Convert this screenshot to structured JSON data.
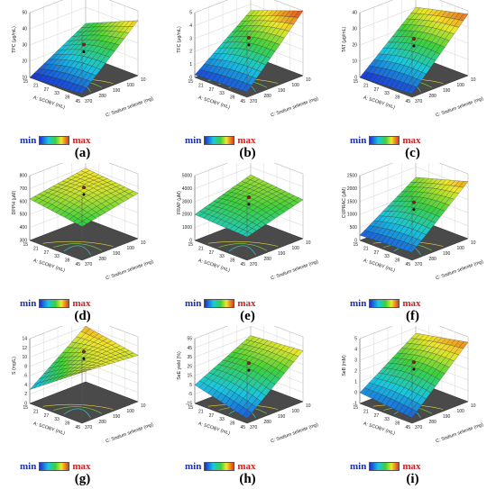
{
  "legend": {
    "min_label": "min",
    "max_label": "max"
  },
  "chart_data": [
    {
      "id": "a",
      "panel_label": "(a)",
      "type": "surface",
      "zlabel": "TPC (μg/mL)",
      "zticks": [
        "10",
        "20",
        "30",
        "40",
        "50"
      ],
      "xlabel": "C: Sodium selenite (mg)",
      "xticks": [
        "10",
        "100",
        "190",
        "280",
        "370"
      ],
      "ylabel": "A: SCOBY (mL)",
      "yticks": [
        "15",
        "21",
        "27",
        "33",
        "39",
        "45"
      ],
      "z_corners": {
        "x0y0": 12,
        "x1y0": 44,
        "x0y1": 10,
        "x1y1": 30
      }
    },
    {
      "id": "b",
      "panel_label": "(b)",
      "type": "surface",
      "zlabel": "TFC (μg/mL)",
      "zticks": [
        "0",
        "1",
        "2",
        "3",
        "4",
        "5"
      ],
      "xlabel": "C: Sodium selenite (mg)",
      "xticks": [
        "10",
        "100",
        "190",
        "280",
        "370"
      ],
      "ylabel": "A: SCOBY (mL)",
      "yticks": [
        "15",
        "21",
        "27",
        "33",
        "39",
        "45"
      ],
      "z_corners": {
        "x0y0": 0.4,
        "x1y0": 5,
        "x0y1": 0.2,
        "x1y1": 3.5
      }
    },
    {
      "id": "c",
      "panel_label": "(c)",
      "type": "surface",
      "zlabel": "TAT (μg/mL)",
      "zticks": [
        "0",
        "10",
        "20",
        "30",
        "40"
      ],
      "xlabel": "C: Sodium selenite (mg)",
      "xticks": [
        "10",
        "100",
        "190",
        "280",
        "370"
      ],
      "ylabel": "A: SCOBY (mL)",
      "yticks": [
        "15",
        "21",
        "27",
        "33",
        "39",
        "45"
      ],
      "z_corners": {
        "x0y0": 2,
        "x1y0": 38,
        "x0y1": 0,
        "x1y1": 30
      }
    },
    {
      "id": "d",
      "panel_label": "(d)",
      "type": "surface",
      "zlabel": "DPPH (μM)",
      "zticks": [
        "300",
        "400",
        "500",
        "600",
        "700",
        "800"
      ],
      "xlabel": "C: Sodium selenite (mg)",
      "xticks": [
        "10",
        "100",
        "190",
        "280",
        "370"
      ],
      "ylabel": "A: SCOBY (mL)",
      "yticks": [
        "15",
        "21",
        "27",
        "33",
        "39",
        "45"
      ],
      "z_corners": {
        "x0y0": 560,
        "x1y0": 650,
        "x0y1": 620,
        "x1y1": 690
      }
    },
    {
      "id": "e",
      "panel_label": "(e)",
      "type": "surface",
      "zlabel": "FRAP (μM)",
      "zticks": [
        "0",
        "1000",
        "2000",
        "3000",
        "4000",
        "5000"
      ],
      "xlabel": "C: Sodium selenite (mg)",
      "xticks": [
        "10",
        "100",
        "190",
        "280",
        "370"
      ],
      "ylabel": "A: SCOBY (mL)",
      "yticks": [
        "15",
        "21",
        "27",
        "33",
        "39",
        "45"
      ],
      "z_corners": {
        "x0y0": 1800,
        "x1y0": 3000,
        "x0y1": 2000,
        "x1y1": 3400
      }
    },
    {
      "id": "f",
      "panel_label": "(f)",
      "type": "surface",
      "zlabel": "CUPRAC (μM)",
      "zticks": [
        "0",
        "500",
        "1000",
        "1500",
        "2000",
        "2500"
      ],
      "xlabel": "C: Sodium selenite (mg)",
      "xticks": [
        "10",
        "100",
        "190",
        "280",
        "370"
      ],
      "ylabel": "A: SCOBY (mL)",
      "yticks": [
        "15",
        "21",
        "27",
        "33",
        "39",
        "45"
      ],
      "z_corners": {
        "x0y0": 300,
        "x1y0": 2200,
        "x0y1": 200,
        "x1y1": 1600
      }
    },
    {
      "id": "g",
      "panel_label": "(g)",
      "type": "surface",
      "zlabel": "S (mg/L)",
      "zticks": [
        "0",
        "2",
        "4",
        "6",
        "8",
        "10",
        "12",
        "14"
      ],
      "xlabel": "C: Sodium selenite (mg)",
      "xticks": [
        "10",
        "100",
        "190",
        "280",
        "370"
      ],
      "ylabel": "A: SCOBY (mL)",
      "yticks": [
        "15",
        "21",
        "27",
        "33",
        "39",
        "45"
      ],
      "z_corners": {
        "x0y0": 11,
        "x1y0": 10,
        "x0y1": 3,
        "x1y1": 12
      }
    },
    {
      "id": "h",
      "panel_label": "(h)",
      "type": "surface",
      "zlabel": "SeE yield (%)",
      "zticks": [
        "-15",
        "-5",
        "5",
        "15",
        "25",
        "35",
        "45",
        "55"
      ],
      "xlabel": "C: Sodium selenite (mg)",
      "xticks": [
        "10",
        "100",
        "190",
        "280",
        "370"
      ],
      "ylabel": "A: SCOBY (mL)",
      "yticks": [
        "15",
        "21",
        "27",
        "33",
        "39",
        "45"
      ],
      "z_corners": {
        "x0y0": -10,
        "x1y0": 40,
        "x0y1": 5,
        "x1y1": 35
      }
    },
    {
      "id": "i",
      "panel_label": "(i)",
      "type": "surface",
      "zlabel": "SeB (mM)",
      "zticks": [
        "-1",
        "0",
        "1",
        "2",
        "3",
        "4",
        "5"
      ],
      "xlabel": "C: Sodium selenite (mg)",
      "xticks": [
        "10",
        "100",
        "190",
        "280",
        "370"
      ],
      "ylabel": "A: SCOBY (mL)",
      "yticks": [
        "15",
        "21",
        "27",
        "33",
        "39",
        "45"
      ],
      "z_corners": {
        "x0y0": -0.5,
        "x1y0": 4.5,
        "x0y1": 0,
        "x1y1": 3.5
      }
    }
  ]
}
